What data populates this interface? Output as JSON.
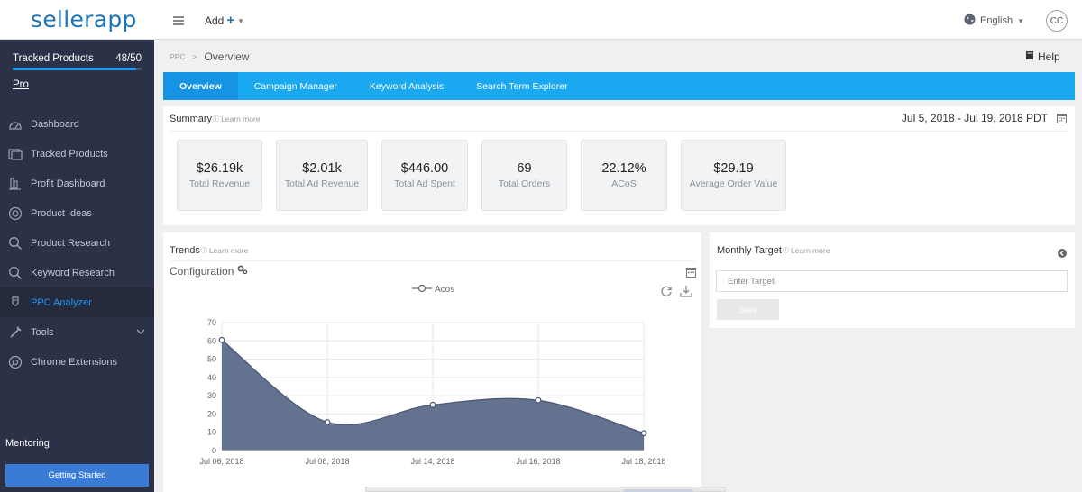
{
  "app": {
    "logo": "sellerapp"
  },
  "sidebar": {
    "tracked_label": "Tracked Products",
    "tracked_count": "48/50",
    "tracked_progress": 0.96,
    "plan": "Pro",
    "items": [
      {
        "label": "Dashboard",
        "icon": "speedometer-icon"
      },
      {
        "label": "Tracked Products",
        "icon": "tracked-products-icon"
      },
      {
        "label": "Profit Dashboard",
        "icon": "profit-icon"
      },
      {
        "label": "Product Ideas",
        "icon": "lightbulb-icon"
      },
      {
        "label": "Product Research",
        "icon": "search-icon"
      },
      {
        "label": "Keyword Research",
        "icon": "keyword-search-icon"
      },
      {
        "label": "PPC Analyzer",
        "icon": "ppc-icon",
        "active": true
      },
      {
        "label": "Tools",
        "icon": "tools-icon",
        "has_children": true
      },
      {
        "label": "Chrome Extensions",
        "icon": "chrome-icon"
      }
    ],
    "mentoring": "Mentoring",
    "getting_started": "Getting Started"
  },
  "topbar": {
    "add_label": "Add",
    "language": "English",
    "avatar_initials": "CC"
  },
  "breadcrumb": {
    "parent": "PPC",
    "separator": ">",
    "current": "Overview"
  },
  "help_label": "Help",
  "tabs": [
    "Overview",
    "Campaign Manager",
    "Keyword Analysis",
    "Search Term Explorer"
  ],
  "summary": {
    "title": "Summary",
    "learn_more": "Learn more",
    "date_range": "Jul 5, 2018 - Jul 19, 2018 PDT",
    "metrics": [
      {
        "value": "$26.19k",
        "label": "Total Revenue"
      },
      {
        "value": "$2.01k",
        "label": "Total Ad Revenue"
      },
      {
        "value": "$446.00",
        "label": "Total Ad Spent"
      },
      {
        "value": "69",
        "label": "Total Orders"
      },
      {
        "value": "22.12%",
        "label": "ACoS"
      },
      {
        "value": "$29.19",
        "label": "Average Order Value"
      }
    ]
  },
  "trends": {
    "title": "Trends",
    "learn_more": "Learn more",
    "configuration": "Configuration",
    "legend": "Acos"
  },
  "monthly_target": {
    "title": "Monthly Target",
    "learn_more": "Learn more",
    "placeholder": "Enter Target",
    "save_label": "Save"
  },
  "chart_data": {
    "type": "area",
    "title": "",
    "xlabel": "",
    "ylabel": "",
    "ylim": [
      0,
      70
    ],
    "yticks": [
      0,
      10,
      20,
      30,
      40,
      50,
      60,
      70
    ],
    "x_tick_labels": [
      "Jul 06, 2018",
      "Jul 08, 2018",
      "Jul 14, 2018",
      "Jul 16, 2018",
      "Jul 18, 2018"
    ],
    "series": [
      {
        "name": "Acos",
        "x": [
          "Jul 06, 2018",
          "Jul 08, 2018",
          "Jul 14, 2018",
          "Jul 16, 2018",
          "Jul 18, 2018"
        ],
        "values": [
          60.5,
          15.5,
          25,
          27.5,
          9.5
        ],
        "color": "#5b6a88"
      }
    ],
    "grid": true
  }
}
